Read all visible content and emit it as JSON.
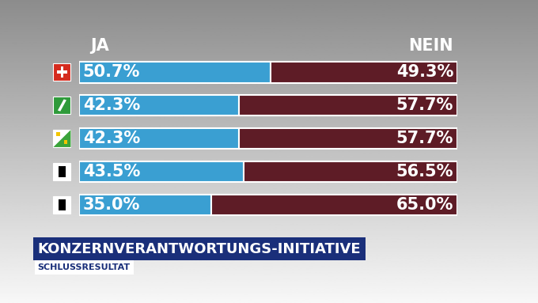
{
  "chart_data": {
    "type": "bar",
    "orientation": "horizontal",
    "stacked": true,
    "title": "KONZERNVERANTWORTUNGS-INITIATIVE",
    "subtitle": "SCHLUSSRESULTAT",
    "categories": [
      null,
      null,
      null,
      null,
      null
    ],
    "series": [
      {
        "name": "JA",
        "color": "#3a9fd2",
        "values": [
          50.7,
          42.3,
          42.3,
          43.5,
          35.0
        ],
        "value_labels": [
          "50.7%",
          "42.3%",
          "42.3%",
          "43.5%",
          "35.0%"
        ]
      },
      {
        "name": "NEIN",
        "color": "#5e1c26",
        "values": [
          49.3,
          57.7,
          57.7,
          56.5,
          65.0
        ],
        "value_labels": [
          "49.3%",
          "57.7%",
          "57.7%",
          "56.5%",
          "65.0%"
        ]
      }
    ],
    "xlim": [
      0,
      100
    ],
    "xticks": [],
    "data_labels": true,
    "tick_labels": false,
    "grid": false
  }
}
